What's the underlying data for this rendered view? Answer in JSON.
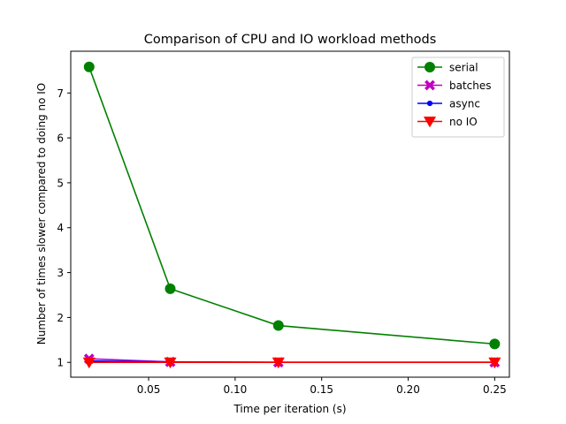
{
  "chart_data": {
    "type": "line",
    "title": "Comparison of CPU and IO workload methods",
    "xlabel": "Time per iteration (s)",
    "ylabel": "Number of times slower compared to doing no IO",
    "xlim": [
      0.005,
      0.2585
    ],
    "ylim": [
      0.67,
      7.93
    ],
    "xticks": [
      0.05,
      0.1,
      0.15,
      0.2,
      0.25
    ],
    "xtick_labels": [
      "0.05",
      "0.10",
      "0.15",
      "0.20",
      "0.25"
    ],
    "yticks": [
      1,
      2,
      3,
      4,
      5,
      6,
      7
    ],
    "ytick_labels": [
      "1",
      "2",
      "3",
      "4",
      "5",
      "6",
      "7"
    ],
    "grid": false,
    "legend_position": "top-right",
    "x": [
      0.015625,
      0.0625,
      0.125,
      0.25
    ],
    "series": [
      {
        "name": "serial",
        "color": "#008000",
        "marker": "circle",
        "values": [
          7.58,
          2.64,
          1.82,
          1.41
        ]
      },
      {
        "name": "batches",
        "color": "#bf00bf",
        "marker": "x-filled",
        "values": [
          1.08,
          1.01,
          1.0,
          1.0
        ]
      },
      {
        "name": "async",
        "color": "#0000ff",
        "marker": "point",
        "values": [
          1.03,
          1.01,
          1.0,
          1.0
        ]
      },
      {
        "name": "no IO",
        "color": "#ff0000",
        "marker": "triangle-down",
        "values": [
          1.0,
          1.0,
          1.0,
          1.0
        ]
      }
    ]
  }
}
